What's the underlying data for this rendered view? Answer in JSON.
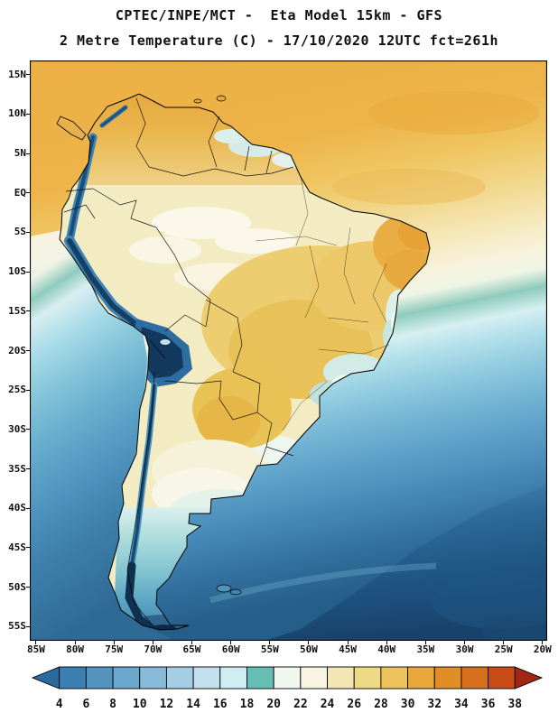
{
  "header": {
    "line1": "CPTEC/INPE/MCT -  Eta Model 15km - GFS",
    "line2": "2 Metre Temperature (C) - 17/10/2020 12UTC fct=261h"
  },
  "chart_data": {
    "type": "heatmap",
    "subtype": "geographic-temperature-map",
    "institution": "CPTEC/INPE/MCT",
    "model": "Eta Model 15km",
    "boundary_conditions": "GFS",
    "variable": "2 Metre Temperature (C)",
    "init_date": "17/10/2020",
    "init_time": "12UTC",
    "forecast": "fct=261h",
    "region": "South America",
    "lat_ticks": [
      "15N",
      "10N",
      "5N",
      "EQ",
      "5S",
      "10S",
      "15S",
      "20S",
      "25S",
      "30S",
      "35S",
      "40S",
      "45S",
      "50S",
      "55S"
    ],
    "lon_ticks": [
      "85W",
      "80W",
      "75W",
      "70W",
      "65W",
      "60W",
      "55W",
      "50W",
      "45W",
      "40W",
      "35W",
      "30W",
      "25W",
      "20W"
    ],
    "colorbar": {
      "unit": "C",
      "tick_values": [
        4,
        6,
        8,
        10,
        12,
        14,
        16,
        18,
        20,
        22,
        24,
        26,
        28,
        30,
        32,
        34,
        36,
        38
      ],
      "colors": [
        "#2a6a9e",
        "#3c80b2",
        "#5293c0",
        "#6ca7cd",
        "#88bbd9",
        "#a5cee4",
        "#c2e0ee",
        "#cfeef2",
        "#66bfb4",
        "#f0f7ef",
        "#f9f4e2",
        "#f2e7b4",
        "#eeda84",
        "#edc45b",
        "#eaa83c",
        "#e18e27",
        "#d76f1d",
        "#c94b15",
        "#a02714"
      ]
    },
    "field_summary": [
      {
        "region": "Caribbean and tropical Atlantic",
        "approx_temp_c": "28-32"
      },
      {
        "region": "Northern South America (Venezuela/Colombia/Guianas)",
        "approx_temp_c": "28-32"
      },
      {
        "region": "Amazon basin",
        "approx_temp_c": "22-26"
      },
      {
        "region": "Central Brazil",
        "approx_temp_c": "26-30"
      },
      {
        "region": "Andes cordillera / Altiplano",
        "approx_temp_c": "<4-8"
      },
      {
        "region": "Southeast Brazil highlands",
        "approx_temp_c": "16-22"
      },
      {
        "region": "Paraguay / northern Argentina",
        "approx_temp_c": "24-28"
      },
      {
        "region": "Central Argentina (Pampas)",
        "approx_temp_c": "18-22"
      },
      {
        "region": "Patagonia",
        "approx_temp_c": "4-14"
      },
      {
        "region": "Tierra del Fuego",
        "approx_temp_c": "<4"
      },
      {
        "region": "Peru-Chile coastal waters (Humboldt current)",
        "approx_temp_c": "12-20"
      },
      {
        "region": "South Atlantic 30-40S",
        "approx_temp_c": "12-20"
      },
      {
        "region": "Southern Ocean 50-55S",
        "approx_temp_c": "<4-8"
      }
    ],
    "palette": {
      "background": "#ffffff",
      "text": "#111111",
      "warm_land": "#eccd6f",
      "warm_ocean": "#ecb044",
      "cold_ocean": "#265e8a",
      "andes_cold_core": "#14395e"
    }
  }
}
